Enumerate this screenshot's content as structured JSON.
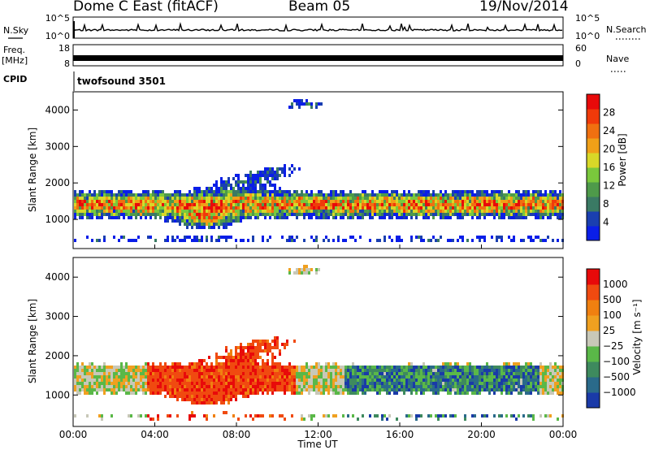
{
  "header": {
    "station": "Dome C East (fitACF)",
    "beam": "Beam 05",
    "date": "19/Nov/2014"
  },
  "panels": {
    "nsky_label": "N.Sky",
    "nsearch_label": "N.Search",
    "nsky_ticks": [
      "10^5",
      "10^0"
    ],
    "nsearch_ticks": [
      "10^5",
      "10^0"
    ],
    "freq_label": "Freq.",
    "freq_unit": "[MHz]",
    "freq_ticks": [
      "18",
      "8"
    ],
    "nave_label": "Nave",
    "nave_ticks": [
      "60",
      "0"
    ],
    "cpid_label": "CPID",
    "cpid_value": "twofsound 3501"
  },
  "chart_data": [
    {
      "type": "heatmap",
      "name": "power",
      "ylabel": "Slant Range [km]",
      "xlabel": "",
      "x_ticks": [
        "00:00",
        "04:00",
        "08:00",
        "12:00",
        "16:00",
        "20:00",
        "00:00"
      ],
      "y_ticks": [
        1000,
        2000,
        3000,
        4000
      ],
      "ylim": [
        200,
        4500
      ],
      "colorbar": {
        "label": "Power [dB]",
        "ticks": [
          4,
          8,
          12,
          16,
          20,
          24,
          28
        ],
        "range": [
          0,
          32
        ],
        "colors": [
          "#0a1ee8",
          "#1a3fb0",
          "#3a7a64",
          "#4e9a4a",
          "#7ac83c",
          "#d8d828",
          "#f0a018",
          "#f07010",
          "#f03a0a",
          "#e80a0a"
        ]
      }
    },
    {
      "type": "heatmap",
      "name": "velocity",
      "ylabel": "Slant Range [km]",
      "xlabel": "Time UT",
      "x_ticks": [
        "00:00",
        "04:00",
        "08:00",
        "12:00",
        "16:00",
        "20:00",
        "00:00"
      ],
      "y_ticks": [
        1000,
        2000,
        3000,
        4000
      ],
      "ylim": [
        200,
        4500
      ],
      "colorbar": {
        "label": "Velocity [m s⁻¹]",
        "ticks": [
          "1000",
          "500",
          "100",
          "25",
          "−25",
          "−100",
          "−500",
          "−1000"
        ],
        "colors": [
          "#1a3aa8",
          "#2a6a8a",
          "#3e8a5e",
          "#5ab848",
          "#c8c8b8",
          "#f0a020",
          "#f08010",
          "#f04a10",
          "#e80a0a"
        ]
      }
    }
  ]
}
